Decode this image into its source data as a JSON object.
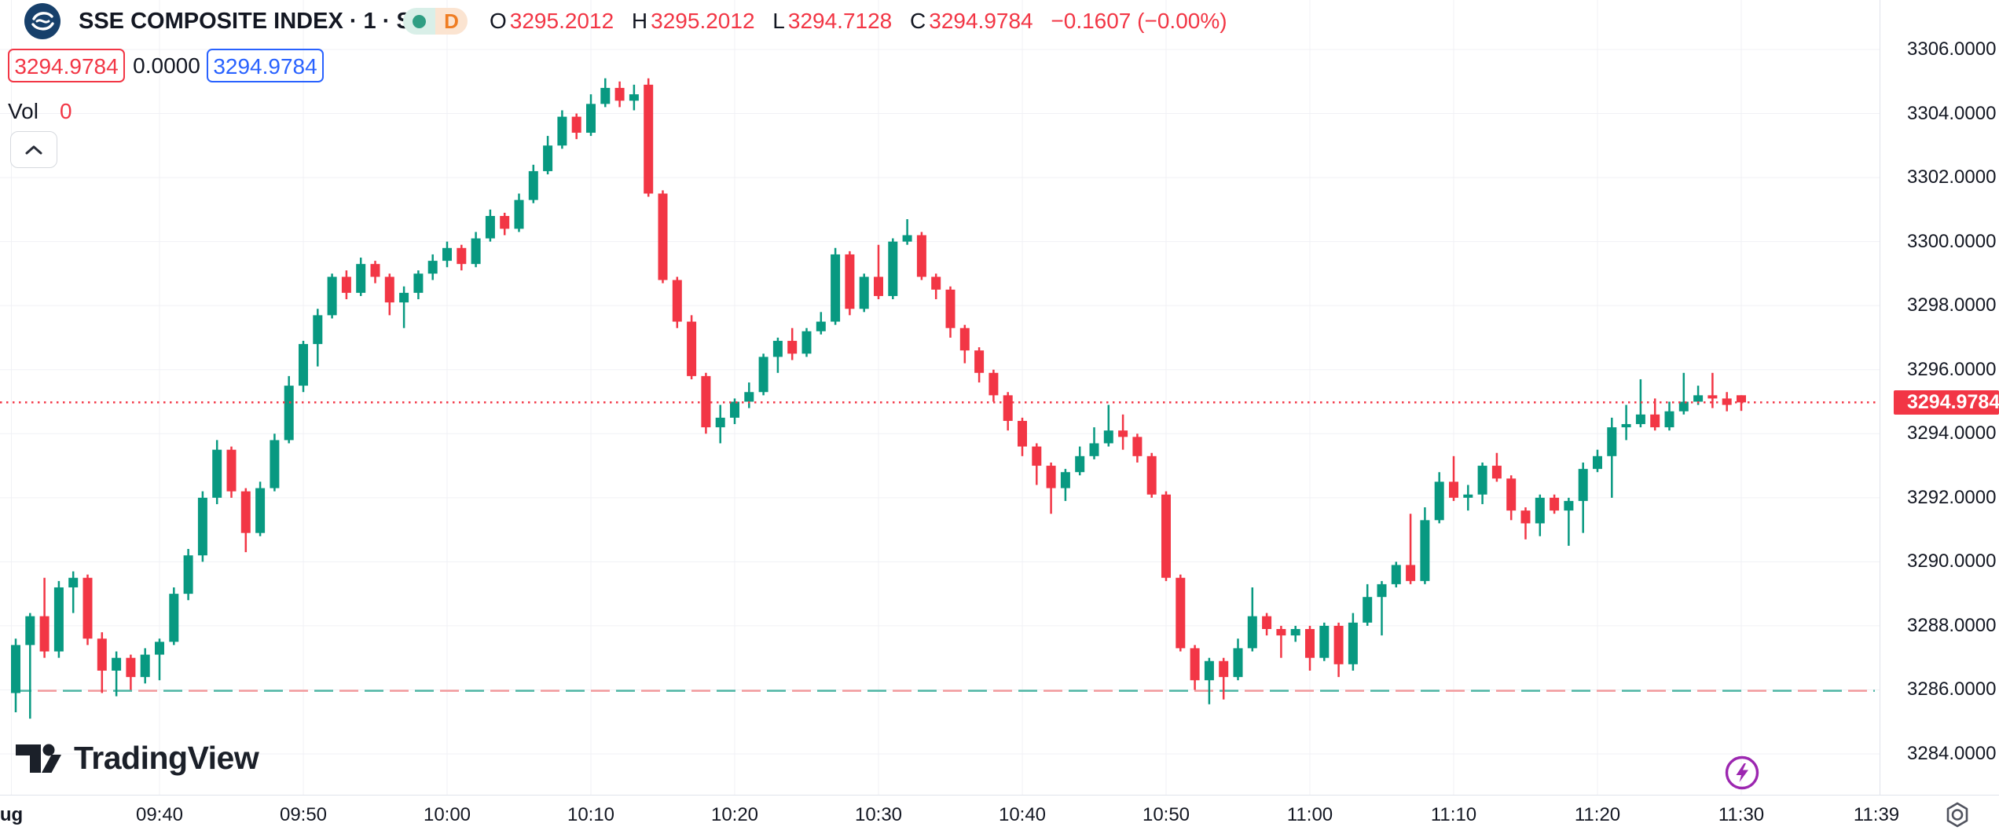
{
  "header": {
    "symbol_title": "SSE COMPOSITE INDEX · 1 · SSE",
    "market_badge": {
      "delay_letter": "D"
    },
    "ohlc": {
      "o_label": "O",
      "o": "3295.2012",
      "h_label": "H",
      "h": "3295.2012",
      "l_label": "L",
      "l": "3294.7128",
      "c_label": "C",
      "c": "3294.9784",
      "change": "−0.1607 (−0.00%)"
    },
    "price_boxes": {
      "low": "3294.9784",
      "mid": "0.0000",
      "high": "3294.9784"
    },
    "vol_label": "Vol",
    "vol_value": "0"
  },
  "watermark": {
    "text": "TradingView"
  },
  "axes": {
    "price_ticks": [
      {
        "label": "3306.0000",
        "price": 3306
      },
      {
        "label": "3304.0000",
        "price": 3304
      },
      {
        "label": "3302.0000",
        "price": 3302
      },
      {
        "label": "3300.0000",
        "price": 3300
      },
      {
        "label": "3298.0000",
        "price": 3298
      },
      {
        "label": "3296.0000",
        "price": 3296
      },
      {
        "label": "3294.0000",
        "price": 3294
      },
      {
        "label": "3292.0000",
        "price": 3292
      },
      {
        "label": "3290.0000",
        "price": 3290
      },
      {
        "label": "3288.0000",
        "price": 3288
      },
      {
        "label": "3286.0000",
        "price": 3286
      },
      {
        "label": "3284.0000",
        "price": 3284
      }
    ],
    "time_ticks": [
      {
        "label": "ug",
        "bar": -0.3,
        "bold": true,
        "grid": true
      },
      {
        "label": "09:40",
        "bar": 10,
        "grid": true
      },
      {
        "label": "09:50",
        "bar": 20,
        "grid": true
      },
      {
        "label": "10:00",
        "bar": 30,
        "grid": true
      },
      {
        "label": "10:10",
        "bar": 40,
        "grid": true
      },
      {
        "label": "10:20",
        "bar": 50,
        "grid": true
      },
      {
        "label": "10:30",
        "bar": 60,
        "grid": true
      },
      {
        "label": "10:40",
        "bar": 70,
        "grid": true
      },
      {
        "label": "10:50",
        "bar": 80,
        "grid": true
      },
      {
        "label": "11:00",
        "bar": 90,
        "grid": true
      },
      {
        "label": "11:10",
        "bar": 100,
        "grid": true
      },
      {
        "label": "11:20",
        "bar": 110,
        "grid": true
      },
      {
        "label": "11:30",
        "bar": 120,
        "grid": true
      },
      {
        "label": "11:39",
        "bar": 129.4,
        "grid": false
      }
    ],
    "last_price_tag": {
      "label": "3294.9784",
      "price": 3294.9784
    }
  },
  "lines": {
    "current_price": 3294.9784,
    "baseline_price": 3285.97
  },
  "chart_data": {
    "type": "candlestick",
    "title": "SSE COMPOSITE INDEX, 1 minute, SSE",
    "start_time": "09:30",
    "interval_minutes": 1,
    "session_end_time": "11:30",
    "ylim": [
      3283.8,
      3306.5
    ],
    "grid": true,
    "candle_format": [
      "open",
      "high",
      "low",
      "close"
    ],
    "candles": [
      [
        3285.9,
        3287.6,
        3285.3,
        3287.4
      ],
      [
        3287.4,
        3288.4,
        3285.1,
        3288.3
      ],
      [
        3288.3,
        3289.5,
        3287.0,
        3287.2
      ],
      [
        3287.2,
        3289.4,
        3287.0,
        3289.2
      ],
      [
        3289.2,
        3289.7,
        3288.4,
        3289.5
      ],
      [
        3289.5,
        3289.6,
        3287.4,
        3287.6
      ],
      [
        3287.6,
        3287.8,
        3285.9,
        3286.6
      ],
      [
        3286.6,
        3287.2,
        3285.8,
        3287.0
      ],
      [
        3287.0,
        3287.1,
        3286.0,
        3286.4
      ],
      [
        3286.4,
        3287.3,
        3286.2,
        3287.1
      ],
      [
        3287.1,
        3287.6,
        3286.3,
        3287.5
      ],
      [
        3287.5,
        3289.2,
        3287.4,
        3289.0
      ],
      [
        3289.0,
        3290.4,
        3288.8,
        3290.2
      ],
      [
        3290.2,
        3292.2,
        3290.0,
        3292.0
      ],
      [
        3292.0,
        3293.8,
        3291.8,
        3293.5
      ],
      [
        3293.5,
        3293.6,
        3292.0,
        3292.2
      ],
      [
        3292.2,
        3292.3,
        3290.3,
        3290.9
      ],
      [
        3290.9,
        3292.5,
        3290.8,
        3292.3
      ],
      [
        3292.3,
        3294.0,
        3292.2,
        3293.8
      ],
      [
        3293.8,
        3295.8,
        3293.7,
        3295.5
      ],
      [
        3295.5,
        3296.9,
        3295.3,
        3296.8
      ],
      [
        3296.8,
        3297.9,
        3296.1,
        3297.7
      ],
      [
        3297.7,
        3299.0,
        3297.6,
        3298.9
      ],
      [
        3298.9,
        3299.1,
        3298.2,
        3298.4
      ],
      [
        3298.4,
        3299.5,
        3298.3,
        3299.3
      ],
      [
        3299.3,
        3299.4,
        3298.7,
        3298.9
      ],
      [
        3298.9,
        3299.0,
        3297.7,
        3298.1
      ],
      [
        3298.1,
        3298.6,
        3297.3,
        3298.4
      ],
      [
        3298.4,
        3299.1,
        3298.2,
        3299.0
      ],
      [
        3299.0,
        3299.6,
        3298.8,
        3299.4
      ],
      [
        3299.4,
        3300.0,
        3299.2,
        3299.8
      ],
      [
        3299.8,
        3299.9,
        3299.1,
        3299.3
      ],
      [
        3299.3,
        3300.3,
        3299.2,
        3300.1
      ],
      [
        3300.1,
        3301.0,
        3300.0,
        3300.8
      ],
      [
        3300.8,
        3300.9,
        3300.2,
        3300.4
      ],
      [
        3300.4,
        3301.5,
        3300.3,
        3301.3
      ],
      [
        3301.3,
        3302.4,
        3301.2,
        3302.2
      ],
      [
        3302.2,
        3303.3,
        3302.1,
        3303.0
      ],
      [
        3303.0,
        3304.1,
        3302.9,
        3303.9
      ],
      [
        3303.9,
        3304.0,
        3303.2,
        3303.4
      ],
      [
        3303.4,
        3304.6,
        3303.3,
        3304.3
      ],
      [
        3304.3,
        3305.1,
        3304.2,
        3304.8
      ],
      [
        3304.8,
        3305.0,
        3304.2,
        3304.4
      ],
      [
        3304.4,
        3304.9,
        3304.1,
        3304.6
      ],
      [
        3304.9,
        3305.1,
        3301.4,
        3301.5
      ],
      [
        3301.5,
        3301.6,
        3298.7,
        3298.8
      ],
      [
        3298.8,
        3298.9,
        3297.3,
        3297.5
      ],
      [
        3297.5,
        3297.7,
        3295.7,
        3295.8
      ],
      [
        3295.8,
        3295.9,
        3294.0,
        3294.2
      ],
      [
        3294.2,
        3294.9,
        3293.7,
        3294.5
      ],
      [
        3294.5,
        3295.1,
        3294.3,
        3295.0
      ],
      [
        3295.0,
        3295.6,
        3294.8,
        3295.3
      ],
      [
        3295.3,
        3296.5,
        3295.2,
        3296.4
      ],
      [
        3296.4,
        3297.0,
        3295.9,
        3296.9
      ],
      [
        3296.9,
        3297.3,
        3296.3,
        3296.5
      ],
      [
        3296.5,
        3297.3,
        3296.4,
        3297.2
      ],
      [
        3297.2,
        3297.8,
        3297.1,
        3297.5
      ],
      [
        3297.5,
        3299.8,
        3297.4,
        3299.6
      ],
      [
        3299.6,
        3299.7,
        3297.7,
        3297.9
      ],
      [
        3297.9,
        3299.0,
        3297.8,
        3298.9
      ],
      [
        3298.9,
        3299.9,
        3298.2,
        3298.3
      ],
      [
        3298.3,
        3300.1,
        3298.2,
        3300.0
      ],
      [
        3300.0,
        3300.7,
        3299.9,
        3300.2
      ],
      [
        3300.2,
        3300.3,
        3298.8,
        3298.9
      ],
      [
        3298.9,
        3299.0,
        3298.2,
        3298.5
      ],
      [
        3298.5,
        3298.6,
        3297.0,
        3297.3
      ],
      [
        3297.3,
        3297.4,
        3296.2,
        3296.6
      ],
      [
        3296.6,
        3296.7,
        3295.6,
        3295.9
      ],
      [
        3295.9,
        3296.0,
        3295.0,
        3295.2
      ],
      [
        3295.2,
        3295.3,
        3294.1,
        3294.4
      ],
      [
        3294.4,
        3294.5,
        3293.3,
        3293.6
      ],
      [
        3293.6,
        3293.7,
        3292.4,
        3293.0
      ],
      [
        3293.0,
        3293.1,
        3291.5,
        3292.3
      ],
      [
        3292.3,
        3292.9,
        3291.9,
        3292.8
      ],
      [
        3292.8,
        3293.6,
        3292.7,
        3293.3
      ],
      [
        3293.3,
        3294.2,
        3293.2,
        3293.7
      ],
      [
        3293.7,
        3294.9,
        3293.6,
        3294.1
      ],
      [
        3294.1,
        3294.6,
        3293.5,
        3293.9
      ],
      [
        3293.9,
        3294.0,
        3293.1,
        3293.3
      ],
      [
        3293.3,
        3293.4,
        3292.0,
        3292.1
      ],
      [
        3292.1,
        3292.2,
        3289.4,
        3289.5
      ],
      [
        3289.5,
        3289.6,
        3287.2,
        3287.3
      ],
      [
        3287.3,
        3287.4,
        3286.0,
        3286.3
      ],
      [
        3286.3,
        3287.0,
        3285.55,
        3286.9
      ],
      [
        3286.9,
        3287.0,
        3285.7,
        3286.4
      ],
      [
        3286.4,
        3287.6,
        3286.3,
        3287.3
      ],
      [
        3287.3,
        3289.2,
        3287.2,
        3288.3
      ],
      [
        3288.3,
        3288.4,
        3287.7,
        3287.9
      ],
      [
        3287.9,
        3288.0,
        3287.0,
        3287.7
      ],
      [
        3287.7,
        3288.0,
        3287.5,
        3287.9
      ],
      [
        3287.9,
        3288.0,
        3286.6,
        3287.0
      ],
      [
        3287.0,
        3288.1,
        3286.9,
        3288.0
      ],
      [
        3288.0,
        3288.1,
        3286.4,
        3286.8
      ],
      [
        3286.8,
        3288.4,
        3286.6,
        3288.1
      ],
      [
        3288.1,
        3289.3,
        3288.0,
        3288.9
      ],
      [
        3288.9,
        3289.4,
        3287.7,
        3289.3
      ],
      [
        3289.3,
        3290.0,
        3289.2,
        3289.9
      ],
      [
        3289.9,
        3291.5,
        3289.3,
        3289.4
      ],
      [
        3289.4,
        3291.7,
        3289.3,
        3291.3
      ],
      [
        3291.3,
        3292.8,
        3291.2,
        3292.5
      ],
      [
        3292.5,
        3293.3,
        3291.9,
        3292.0
      ],
      [
        3292.0,
        3292.4,
        3291.6,
        3292.1
      ],
      [
        3292.1,
        3293.1,
        3291.8,
        3293.0
      ],
      [
        3293.0,
        3293.4,
        3292.5,
        3292.6
      ],
      [
        3292.6,
        3292.7,
        3291.3,
        3291.6
      ],
      [
        3291.6,
        3291.7,
        3290.7,
        3291.2
      ],
      [
        3291.2,
        3292.1,
        3290.8,
        3292.0
      ],
      [
        3292.0,
        3292.1,
        3291.5,
        3291.6
      ],
      [
        3291.6,
        3292.0,
        3290.5,
        3291.9
      ],
      [
        3291.9,
        3293.1,
        3290.9,
        3292.9
      ],
      [
        3292.9,
        3293.5,
        3292.8,
        3293.3
      ],
      [
        3293.3,
        3294.5,
        3292.0,
        3294.2
      ],
      [
        3294.2,
        3294.9,
        3293.8,
        3294.3
      ],
      [
        3294.3,
        3295.7,
        3294.2,
        3294.6
      ],
      [
        3294.6,
        3295.1,
        3294.1,
        3294.2
      ],
      [
        3294.2,
        3295.0,
        3294.1,
        3294.7
      ],
      [
        3294.7,
        3295.9,
        3294.6,
        3295.0
      ],
      [
        3295.0,
        3295.5,
        3294.9,
        3295.2
      ],
      [
        3295.2,
        3295.9,
        3294.8,
        3295.1
      ],
      [
        3295.1,
        3295.3,
        3294.7,
        3294.9
      ],
      [
        3295.2012,
        3295.2012,
        3294.7128,
        3294.9784
      ]
    ]
  },
  "colors": {
    "up": "#089981",
    "down": "#f23645",
    "grid": "#f0f1f5",
    "axis_border": "#e0e3eb",
    "text": "#131722",
    "accent_blue": "#2962ff",
    "baseline_teal": "#4db6a4",
    "baseline_salmon": "#f29a9c",
    "badge_purple": "#9c27b0",
    "delay_orange": "#ef7d23"
  }
}
